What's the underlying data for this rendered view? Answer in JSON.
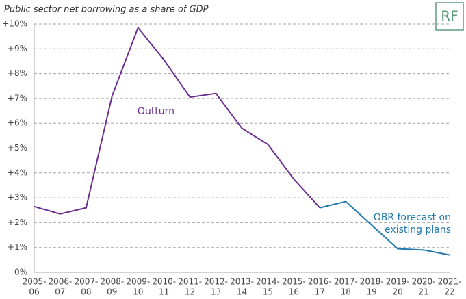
{
  "logo": "RF",
  "chart_data": {
    "type": "line",
    "title": "Public sector net borrowing as a share of GDP",
    "categories": [
      [
        "2005-",
        "06"
      ],
      [
        "2006-",
        "07"
      ],
      [
        "2007-",
        "08"
      ],
      [
        "2008-",
        "09"
      ],
      [
        "2009-",
        "10"
      ],
      [
        "2010-",
        "11"
      ],
      [
        "2011-",
        "12"
      ],
      [
        "2012-",
        "13"
      ],
      [
        "2013-",
        "14"
      ],
      [
        "2014-",
        "15"
      ],
      [
        "2015-",
        "16"
      ],
      [
        "2016-",
        "17"
      ],
      [
        "2017-",
        "18"
      ],
      [
        "2018-",
        "19"
      ],
      [
        "2019-",
        "20"
      ],
      [
        "2020-",
        "21"
      ],
      [
        "2021-",
        "22"
      ]
    ],
    "series": [
      {
        "name": [
          "Outturn"
        ],
        "color": "#6b2d8f",
        "values": [
          2.65,
          2.35,
          2.6,
          7.1,
          9.85,
          8.55,
          7.05,
          7.2,
          5.8,
          5.15,
          3.75,
          2.6,
          null,
          null,
          null,
          null,
          null
        ]
      },
      {
        "name": [
          "OBR forecast on",
          "existing plans"
        ],
        "color": "#1f78ae",
        "values": [
          null,
          null,
          null,
          null,
          null,
          null,
          null,
          null,
          null,
          null,
          null,
          2.6,
          2.85,
          1.9,
          0.95,
          0.9,
          0.7
        ]
      }
    ],
    "ylim": [
      0,
      10
    ],
    "yticks": [
      {
        "value": 0,
        "label": "0%"
      },
      {
        "value": 1,
        "label": "+1%"
      },
      {
        "value": 2,
        "label": "+2%"
      },
      {
        "value": 3,
        "label": "+3%"
      },
      {
        "value": 4,
        "label": "+4%"
      },
      {
        "value": 5,
        "label": "+5%"
      },
      {
        "value": 6,
        "label": "+6%"
      },
      {
        "value": 7,
        "label": "+7%"
      },
      {
        "value": 8,
        "label": "+8%"
      },
      {
        "value": 9,
        "label": "+9%"
      },
      {
        "value": 10,
        "label": "+10%"
      }
    ],
    "grid": true
  }
}
